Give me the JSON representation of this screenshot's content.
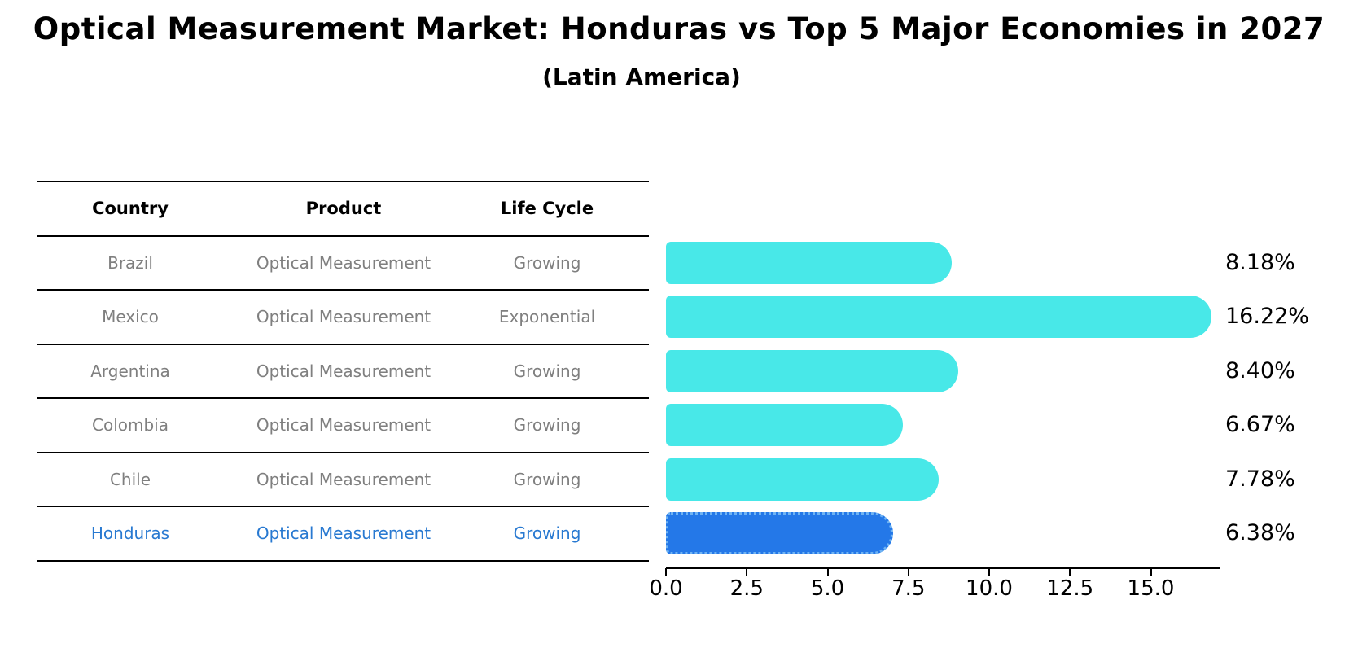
{
  "header": {
    "title": "Optical Measurement Market: Honduras vs Top 5 Major Economies in 2027",
    "subtitle": "(Latin America)"
  },
  "table": {
    "headers": [
      "Country",
      "Product",
      "Life Cycle"
    ],
    "rows": [
      {
        "country": "Brazil",
        "product": "Optical Measurement",
        "life_cycle": "Growing"
      },
      {
        "country": "Mexico",
        "product": "Optical Measurement",
        "life_cycle": "Exponential"
      },
      {
        "country": "Argentina",
        "product": "Optical Measurement",
        "life_cycle": "Growing"
      },
      {
        "country": "Colombia",
        "product": "Optical Measurement",
        "life_cycle": "Growing"
      },
      {
        "country": "Chile",
        "product": "Optical Measurement",
        "life_cycle": "Growing"
      },
      {
        "country": "Honduras",
        "product": "Optical Measurement",
        "life_cycle": "Growing"
      }
    ],
    "row_text_color": "#7f7f7f",
    "highlight_row": "Honduras",
    "highlight_text_color": "#2879D1"
  },
  "chart_data": {
    "type": "bar",
    "orientation": "horizontal",
    "title": "Optical Measurement Market: Honduras vs Top 5 Major Economies in 2027",
    "subtitle": "(Latin America)",
    "categories": [
      "Brazil",
      "Mexico",
      "Argentina",
      "Colombia",
      "Chile",
      "Honduras"
    ],
    "values": [
      8.18,
      16.22,
      8.4,
      6.67,
      7.78,
      6.38
    ],
    "value_labels": [
      "8.18%",
      "16.22%",
      "8.40%",
      "6.67%",
      "7.78%",
      "6.38%"
    ],
    "xlim": [
      0,
      17.1
    ],
    "xticks": [
      0,
      2.5,
      5,
      7.5,
      10,
      12.5,
      15
    ],
    "xtick_labels": [
      "0.0",
      "2.5",
      "5.0",
      "7.5",
      "10.0",
      "12.5",
      "15.0"
    ],
    "bar_color": "#48E8E8",
    "highlight_color": "#2478E8",
    "highlight_index": 5,
    "grid": false,
    "legend": false
  }
}
